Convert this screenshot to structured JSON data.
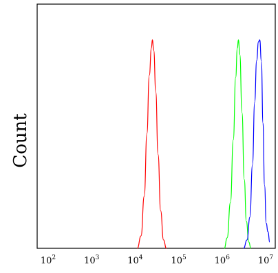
{
  "chart_data": {
    "type": "line",
    "title": "",
    "xlabel": "",
    "ylabel": "Count",
    "x_scale": "log",
    "xlim": [
      100,
      10000000
    ],
    "ylim": [
      0,
      1.0
    ],
    "grid": false,
    "x_ticks": [
      {
        "base": "10",
        "exp": "2"
      },
      {
        "base": "10",
        "exp": "3"
      },
      {
        "base": "10",
        "exp": "4"
      },
      {
        "base": "10",
        "exp": "5"
      },
      {
        "base": "10",
        "exp": "6"
      },
      {
        "base": "10",
        "exp": "7"
      }
    ],
    "series": [
      {
        "color": "#ff0000",
        "points": [
          [
            9000,
            0.0
          ],
          [
            11000,
            0.06
          ],
          [
            13000,
            0.25
          ],
          [
            15000,
            0.55
          ],
          [
            17000,
            0.83
          ],
          [
            19000,
            0.96
          ],
          [
            20000,
            1.0
          ],
          [
            21500,
            0.95
          ],
          [
            24000,
            0.75
          ],
          [
            27000,
            0.45
          ],
          [
            31000,
            0.18
          ],
          [
            36000,
            0.04
          ],
          [
            42000,
            0.0
          ]
        ]
      },
      {
        "color": "#00ff00",
        "points": [
          [
            900000,
            0.0
          ],
          [
            1050000,
            0.05
          ],
          [
            1250000,
            0.22
          ],
          [
            1450000,
            0.52
          ],
          [
            1650000,
            0.82
          ],
          [
            1800000,
            0.96
          ],
          [
            1900000,
            1.0
          ],
          [
            2050000,
            0.93
          ],
          [
            2300000,
            0.65
          ],
          [
            2600000,
            0.33
          ],
          [
            2900000,
            0.13
          ],
          [
            3300000,
            0.03
          ],
          [
            3700000,
            0.0
          ]
        ]
      },
      {
        "color": "#0000ff",
        "points": [
          [
            2500000,
            0.0
          ],
          [
            3000000,
            0.04
          ],
          [
            3500000,
            0.15
          ],
          [
            4000000,
            0.4
          ],
          [
            4500000,
            0.7
          ],
          [
            5000000,
            0.9
          ],
          [
            5500000,
            0.99
          ],
          [
            5900000,
            1.0
          ],
          [
            6400000,
            0.9
          ],
          [
            7000000,
            0.6
          ],
          [
            7600000,
            0.3
          ],
          [
            8300000,
            0.12
          ],
          [
            9100000,
            0.08
          ],
          [
            10000000,
            0.03
          ]
        ]
      }
    ]
  }
}
